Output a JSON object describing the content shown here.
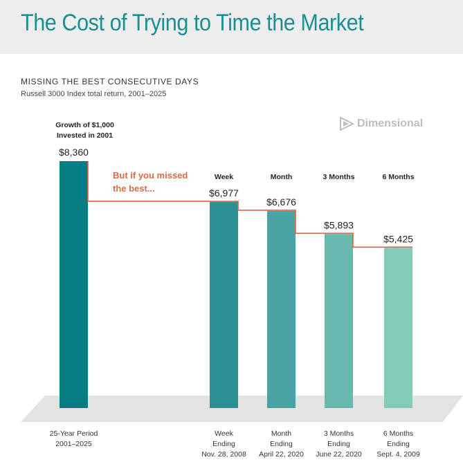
{
  "header": {
    "title": "The Cost of Trying to Time the Market"
  },
  "subtitle": {
    "caps": "MISSING THE BEST CONSECUTIVE DAYS",
    "sub": "Russell 3000 Index total return, 2001–2025"
  },
  "brand": {
    "name": "Dimensional",
    "icon": "dimensional-logo-icon"
  },
  "colors": {
    "title": "#1a8f92",
    "accent_line": "#e0603e",
    "annotation": "#d96a4a",
    "bars": [
      "#067c83",
      "#2b8f94",
      "#4aa3a3",
      "#68b8b0",
      "#82cbb6"
    ]
  },
  "chart_data": {
    "type": "bar",
    "title": "MISSING THE BEST CONSECUTIVE DAYS",
    "subtitle": "Russell 3000 Index total return, 2001–2025",
    "ylabel": "Growth of $1,000 Invested in 2001",
    "ylim": [
      0,
      8700
    ],
    "intro_label": "Growth of $1,000\nInvested in 2001",
    "annotation": "But if you missed\nthe best...",
    "series": [
      {
        "name": "Growth of $1,000",
        "values": [
          8360,
          6977,
          6676,
          5893,
          5425
        ]
      }
    ],
    "bars": [
      {
        "top_label": "",
        "value": 8360,
        "value_label": "$8,360",
        "bottom_label": "25-Year Period\n2001–2025"
      },
      {
        "top_label": "Week",
        "value": 6977,
        "value_label": "$6,977",
        "bottom_label": "Week\nEnding\nNov. 28, 2008"
      },
      {
        "top_label": "Month",
        "value": 6676,
        "value_label": "$6,676",
        "bottom_label": "Month\nEnding\nApril 22, 2020"
      },
      {
        "top_label": "3 Months",
        "value": 5893,
        "value_label": "$5,893",
        "bottom_label": "3 Months\nEnding\nJune 22, 2020"
      },
      {
        "top_label": "6 Months",
        "value": 5425,
        "value_label": "$5,425",
        "bottom_label": "6 Months\nEnding\nSept. 4, 2009"
      }
    ]
  }
}
